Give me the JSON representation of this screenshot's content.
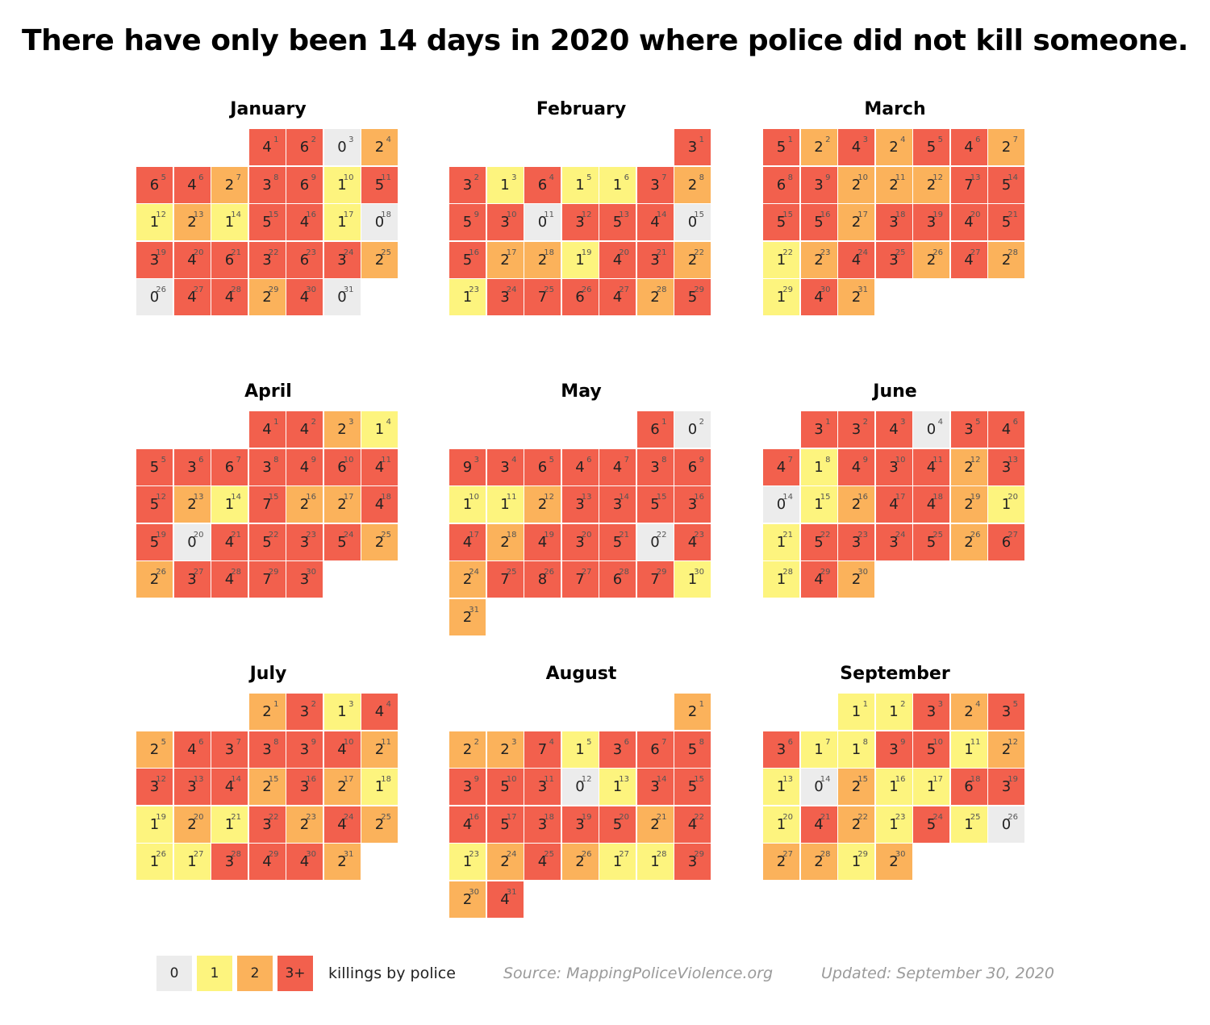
{
  "title": "There have only been 14 days in 2020 where police did not kill someone.",
  "colors": {
    "zero": "#ececec",
    "one": "#fdf47e",
    "two": "#fbb25b",
    "three_plus": "#f2604d"
  },
  "legend": {
    "items": [
      {
        "label": "0",
        "level": 0
      },
      {
        "label": "1",
        "level": 1
      },
      {
        "label": "2",
        "level": 2
      },
      {
        "label": "3+",
        "level": 3
      }
    ],
    "text": "killings by police"
  },
  "source": "Source: MappingPoliceViolence.org",
  "updated": "Updated: September 30, 2020",
  "chart_data": {
    "type": "heatmap",
    "title": "There have only been 14 days in 2020 where police did not kill someone.",
    "value_label": "killings by police",
    "months": [
      {
        "name": "January",
        "start_weekday": 3,
        "values": [
          4,
          6,
          0,
          2,
          6,
          4,
          2,
          3,
          6,
          1,
          5,
          1,
          2,
          1,
          5,
          4,
          1,
          0,
          3,
          4,
          6,
          3,
          6,
          3,
          2,
          0,
          4,
          4,
          2,
          4,
          0
        ]
      },
      {
        "name": "February",
        "start_weekday": 6,
        "values": [
          3,
          3,
          1,
          6,
          1,
          1,
          3,
          2,
          5,
          3,
          0,
          3,
          5,
          4,
          0,
          5,
          2,
          2,
          1,
          4,
          3,
          2,
          1,
          3,
          7,
          6,
          4,
          2,
          5
        ]
      },
      {
        "name": "March",
        "start_weekday": 0,
        "values": [
          5,
          2,
          4,
          2,
          5,
          4,
          2,
          6,
          3,
          2,
          2,
          2,
          7,
          5,
          5,
          5,
          2,
          3,
          3,
          4,
          5,
          1,
          2,
          4,
          3,
          2,
          4,
          2,
          1,
          4,
          2
        ]
      },
      {
        "name": "April",
        "start_weekday": 3,
        "values": [
          4,
          4,
          2,
          1,
          5,
          3,
          6,
          3,
          4,
          6,
          4,
          5,
          2,
          1,
          7,
          2,
          2,
          4,
          5,
          0,
          4,
          5,
          3,
          5,
          2,
          2,
          3,
          4,
          7,
          3
        ]
      },
      {
        "name": "May",
        "start_weekday": 5,
        "values": [
          6,
          0,
          9,
          3,
          6,
          4,
          4,
          3,
          6,
          1,
          1,
          2,
          3,
          3,
          5,
          3,
          4,
          2,
          4,
          3,
          5,
          0,
          4,
          2,
          7,
          8,
          7,
          6,
          7,
          1,
          2
        ]
      },
      {
        "name": "June",
        "start_weekday": 1,
        "values": [
          3,
          3,
          4,
          0,
          3,
          4,
          4,
          1,
          4,
          3,
          4,
          2,
          3,
          0,
          1,
          2,
          4,
          4,
          2,
          1,
          1,
          5,
          3,
          3,
          5,
          2,
          6,
          1,
          4,
          2
        ]
      },
      {
        "name": "July",
        "start_weekday": 3,
        "values": [
          2,
          3,
          1,
          4,
          2,
          4,
          3,
          3,
          3,
          4,
          2,
          3,
          3,
          4,
          2,
          3,
          2,
          1,
          1,
          2,
          1,
          3,
          2,
          4,
          2,
          1,
          1,
          3,
          4,
          4,
          2
        ]
      },
      {
        "name": "August",
        "start_weekday": 6,
        "values": [
          2,
          2,
          2,
          7,
          1,
          3,
          6,
          5,
          3,
          5,
          3,
          0,
          1,
          3,
          5,
          4,
          5,
          3,
          3,
          5,
          2,
          4,
          1,
          2,
          4,
          2,
          1,
          1,
          3,
          2,
          4
        ]
      },
      {
        "name": "September",
        "start_weekday": 2,
        "values": [
          1,
          1,
          3,
          2,
          3,
          3,
          1,
          1,
          3,
          5,
          1,
          2,
          1,
          0,
          2,
          1,
          1,
          6,
          3,
          1,
          4,
          2,
          1,
          5,
          1,
          0,
          2,
          2,
          1,
          2
        ]
      }
    ]
  }
}
